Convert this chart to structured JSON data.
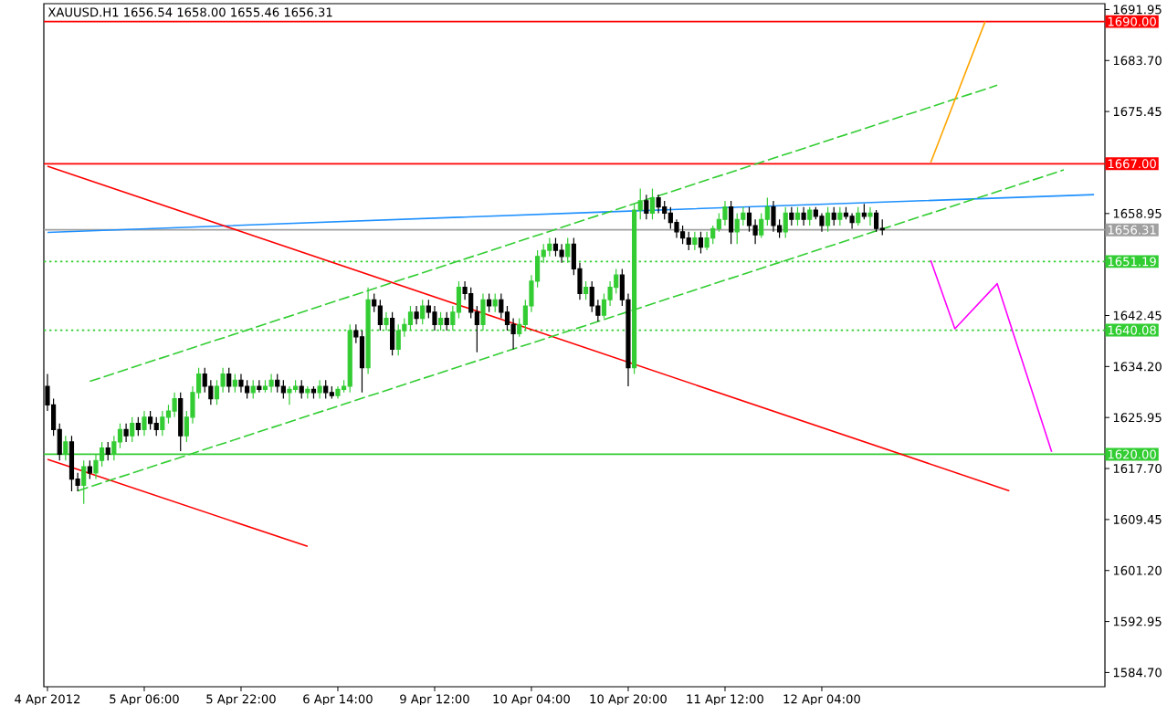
{
  "chart_data": {
    "type": "candlestick",
    "title": "XAUUSD.H1  1656.54 1658.00 1655.46 1656.31",
    "categories": [
      "4 Apr 2012",
      null,
      null,
      null,
      null,
      null,
      null,
      null,
      null,
      null,
      null,
      null,
      null,
      null,
      null,
      null,
      "5 Apr 06:00",
      null,
      null,
      null,
      null,
      null,
      null,
      null,
      null,
      null,
      null,
      null,
      null,
      null,
      null,
      null,
      "5 Apr 22:00",
      null,
      null,
      null,
      null,
      null,
      null,
      null,
      null,
      null,
      null,
      null,
      null,
      null,
      null,
      null,
      "6 Apr 14:00",
      null,
      null,
      null,
      null,
      null,
      null,
      null,
      null,
      null,
      null,
      null,
      null,
      null,
      null,
      null,
      "9 Apr 12:00",
      null,
      null,
      null,
      null,
      null,
      null,
      null,
      null,
      null,
      null,
      null,
      null,
      null,
      null,
      null,
      "10 Apr 04:00",
      null,
      null,
      null,
      null,
      null,
      null,
      null,
      null,
      null,
      null,
      null,
      null,
      null,
      null,
      null,
      "10 Apr 20:00",
      null,
      null,
      null,
      null,
      null,
      null,
      null,
      null,
      null,
      null,
      null,
      null,
      null,
      null,
      null,
      "11 Apr 12:00",
      null,
      null,
      null,
      null,
      null,
      null,
      null,
      null,
      null,
      null,
      null,
      null,
      null,
      null,
      null,
      "12 Apr 04:00",
      null,
      null,
      null,
      null,
      null,
      null,
      null,
      null,
      null,
      null,
      null,
      null,
      null,
      null,
      null,
      null,
      null,
      null,
      null,
      null,
      null,
      null,
      null,
      null,
      null,
      null,
      null,
      null,
      null,
      null,
      null,
      null,
      null,
      null,
      null,
      null,
      null,
      null,
      null,
      null,
      null,
      null,
      null,
      null,
      null,
      null
    ],
    "ohlc": [
      [
        1631,
        1633,
        1627,
        1628
      ],
      [
        1628,
        1629,
        1623,
        1624
      ],
      [
        1624,
        1625,
        1619,
        1620
      ],
      [
        1620,
        1623,
        1619,
        1622
      ],
      [
        1622,
        1623,
        1614,
        1616
      ],
      [
        1616,
        1617,
        1614,
        1615
      ],
      [
        1615,
        1619,
        1612,
        1618
      ],
      [
        1618,
        1619,
        1616,
        1617
      ],
      [
        1617,
        1620,
        1616,
        1619
      ],
      [
        1619,
        1622,
        1618,
        1621
      ],
      [
        1621,
        1622,
        1619,
        1620
      ],
      [
        1620,
        1623,
        1619,
        1622
      ],
      [
        1622,
        1625,
        1621,
        1624
      ],
      [
        1624,
        1625,
        1622,
        1623
      ],
      [
        1623,
        1626,
        1622,
        1625
      ],
      [
        1625,
        1626,
        1623,
        1624
      ],
      [
        1624,
        1627,
        1623,
        1626
      ],
      [
        1626,
        1627,
        1624,
        1625
      ],
      [
        1625,
        1626,
        1623,
        1624
      ],
      [
        1624,
        1627,
        1623,
        1626
      ],
      [
        1626,
        1628,
        1625,
        1627
      ],
      [
        1627,
        1630,
        1626,
        1629
      ],
      [
        1629,
        1630,
        1620.5,
        1623
      ],
      [
        1623,
        1627,
        1622,
        1626
      ],
      [
        1626,
        1631,
        1625,
        1630
      ],
      [
        1630,
        1634,
        1629,
        1633
      ],
      [
        1633,
        1634,
        1630,
        1631
      ],
      [
        1631,
        1632,
        1628,
        1629
      ],
      [
        1629,
        1632,
        1628,
        1631
      ],
      [
        1631,
        1634,
        1630,
        1633
      ],
      [
        1633,
        1634,
        1630,
        1631
      ],
      [
        1631,
        1633,
        1630,
        1632
      ],
      [
        1632,
        1633,
        1630,
        1631
      ],
      [
        1631,
        1632,
        1629,
        1630
      ],
      [
        1630,
        1632,
        1629,
        1631
      ],
      [
        1631,
        1632,
        1630,
        1630.5
      ],
      [
        1630.5,
        1632,
        1630,
        1631
      ],
      [
        1631,
        1633,
        1630,
        1632
      ],
      [
        1632,
        1633,
        1630,
        1631
      ],
      [
        1631,
        1632,
        1629,
        1630
      ],
      [
        1630,
        1631,
        1628,
        1630.5
      ],
      [
        1630.5,
        1632,
        1630,
        1631
      ],
      [
        1631,
        1632,
        1629,
        1630
      ],
      [
        1630,
        1631,
        1629,
        1630.5
      ],
      [
        1630.5,
        1631,
        1629,
        1630
      ],
      [
        1630,
        1632,
        1629,
        1631
      ],
      [
        1631,
        1632,
        1629,
        1630
      ],
      [
        1630,
        1631,
        1629,
        1629.5
      ],
      [
        1629.5,
        1631,
        1629,
        1630.5
      ],
      [
        1630.5,
        1632,
        1630,
        1631
      ],
      [
        1631,
        1641,
        1630,
        1640
      ],
      [
        1640,
        1641,
        1638,
        1639
      ],
      [
        1639,
        1640,
        1630,
        1634
      ],
      [
        1634,
        1647,
        1633,
        1645
      ],
      [
        1645,
        1646,
        1643,
        1644
      ],
      [
        1644,
        1645,
        1640,
        1641
      ],
      [
        1641,
        1643,
        1640,
        1642
      ],
      [
        1642,
        1643,
        1636,
        1637
      ],
      [
        1637,
        1641,
        1636,
        1640
      ],
      [
        1640,
        1642,
        1639,
        1641
      ],
      [
        1641,
        1644,
        1640,
        1643
      ],
      [
        1643,
        1644,
        1641,
        1642
      ],
      [
        1642,
        1645,
        1641,
        1644
      ],
      [
        1644,
        1645,
        1642,
        1643
      ],
      [
        1643,
        1644,
        1640,
        1641
      ],
      [
        1641,
        1643,
        1640,
        1642
      ],
      [
        1642,
        1643,
        1640,
        1641
      ],
      [
        1641,
        1644,
        1640,
        1643
      ],
      [
        1643,
        1648,
        1642,
        1647
      ],
      [
        1647,
        1648,
        1645,
        1646
      ],
      [
        1646,
        1647,
        1642,
        1643
      ],
      [
        1643,
        1644,
        1636.5,
        1641
      ],
      [
        1641,
        1646,
        1640,
        1645
      ],
      [
        1645,
        1646,
        1643,
        1644
      ],
      [
        1644,
        1646,
        1643,
        1645
      ],
      [
        1645,
        1646,
        1642,
        1643
      ],
      [
        1643,
        1644,
        1640,
        1641
      ],
      [
        1641,
        1642,
        1637,
        1639.5
      ],
      [
        1639.5,
        1642,
        1639,
        1641
      ],
      [
        1641,
        1645,
        1640,
        1644
      ],
      [
        1644,
        1649,
        1643,
        1648
      ],
      [
        1648,
        1653,
        1647,
        1652
      ],
      [
        1652,
        1654,
        1651,
        1653
      ],
      [
        1653,
        1655,
        1652,
        1654
      ],
      [
        1654,
        1655,
        1652,
        1653
      ],
      [
        1653,
        1654,
        1651,
        1652
      ],
      [
        1652,
        1655,
        1651,
        1654
      ],
      [
        1654,
        1655,
        1649,
        1650
      ],
      [
        1650,
        1651,
        1645,
        1646
      ],
      [
        1646,
        1648,
        1645,
        1647
      ],
      [
        1647,
        1648,
        1643,
        1644
      ],
      [
        1644,
        1645,
        1641.5,
        1642.5
      ],
      [
        1642.5,
        1646,
        1642,
        1645
      ],
      [
        1645,
        1648,
        1644,
        1647
      ],
      [
        1647,
        1650,
        1646,
        1649
      ],
      [
        1649,
        1650,
        1644,
        1645
      ],
      [
        1645,
        1646,
        1631,
        1634
      ],
      [
        1634,
        1660.5,
        1633,
        1659.5
      ],
      [
        1659.5,
        1663,
        1658,
        1661
      ],
      [
        1661,
        1662,
        1658,
        1659
      ],
      [
        1659,
        1663,
        1658,
        1661.5
      ],
      [
        1661.5,
        1662,
        1659,
        1660
      ],
      [
        1660,
        1661,
        1658,
        1659
      ],
      [
        1659,
        1660,
        1656.5,
        1657.5
      ],
      [
        1657.5,
        1658,
        1655,
        1656
      ],
      [
        1656,
        1657,
        1654,
        1655
      ],
      [
        1655,
        1656,
        1653,
        1654
      ],
      [
        1654,
        1656,
        1653,
        1655
      ],
      [
        1655,
        1656,
        1652.5,
        1653.5
      ],
      [
        1653.5,
        1656,
        1653,
        1655
      ],
      [
        1655,
        1657,
        1654,
        1656.5
      ],
      [
        1656.5,
        1659,
        1656,
        1658
      ],
      [
        1658,
        1661,
        1657,
        1660
      ],
      [
        1660,
        1661,
        1654,
        1656
      ],
      [
        1656,
        1659,
        1654,
        1658
      ],
      [
        1658,
        1660,
        1657,
        1659
      ],
      [
        1659,
        1660,
        1656,
        1657
      ],
      [
        1657,
        1658,
        1654,
        1655.5
      ],
      [
        1655.5,
        1659,
        1655,
        1658
      ],
      [
        1658,
        1661.5,
        1657,
        1660
      ],
      [
        1660,
        1661,
        1656,
        1657
      ],
      [
        1657,
        1658,
        1655,
        1656
      ],
      [
        1656,
        1660,
        1655,
        1659
      ],
      [
        1659,
        1660,
        1657,
        1658
      ],
      [
        1658,
        1660,
        1657,
        1659
      ],
      [
        1659,
        1660,
        1657,
        1658
      ],
      [
        1658,
        1660,
        1657,
        1659.5
      ],
      [
        1659.5,
        1660,
        1658,
        1658.5
      ],
      [
        1658.5,
        1659,
        1656,
        1657
      ],
      [
        1657,
        1660,
        1656,
        1659
      ],
      [
        1659,
        1660,
        1657,
        1658
      ],
      [
        1658,
        1660,
        1657,
        1659
      ],
      [
        1659,
        1660,
        1658,
        1658.5
      ],
      [
        1658.5,
        1659,
        1656.5,
        1657.5
      ],
      [
        1657.5,
        1660,
        1657,
        1659
      ],
      [
        1659,
        1660.5,
        1658,
        1658.5
      ],
      [
        1658.5,
        1660,
        1657,
        1659
      ],
      [
        1659,
        1659.5,
        1656,
        1656.54
      ],
      [
        1656.54,
        1658,
        1655.46,
        1656.31
      ],
      null,
      null,
      null,
      null,
      null,
      null,
      null,
      null,
      null,
      null,
      null,
      null,
      null,
      null,
      null,
      null,
      null,
      null,
      null,
      null,
      null,
      null,
      null,
      null,
      null,
      null,
      null,
      null,
      null,
      null,
      null,
      null,
      null,
      null,
      null,
      null
    ],
    "series": [
      {
        "type": "line",
        "color": "#1e90ff",
        "values": [
          1655.9,
          null,
          null,
          null,
          null,
          null,
          null,
          null,
          null,
          null,
          null,
          null,
          null,
          null,
          null,
          null,
          null,
          null,
          null,
          null,
          null,
          null,
          null,
          null,
          null,
          null,
          null,
          null,
          null,
          null,
          null,
          null,
          null,
          null,
          null,
          null,
          null,
          null,
          null,
          null,
          null,
          null,
          null,
          null,
          null,
          null,
          null,
          null,
          null,
          null,
          null,
          null,
          null,
          null,
          null,
          null,
          null,
          null,
          null,
          null,
          null,
          null,
          null,
          null,
          null,
          null,
          null,
          null,
          null,
          null,
          null,
          null,
          null,
          null,
          null,
          null,
          null,
          null,
          null,
          null,
          null,
          null,
          null,
          null,
          null,
          null,
          null,
          null,
          null,
          null,
          null,
          null,
          1659.2,
          null,
          null,
          null,
          null,
          null,
          null,
          null,
          null,
          null,
          null,
          null,
          null,
          null,
          null,
          null,
          null,
          null,
          null,
          null,
          null,
          null,
          null,
          null,
          null,
          null,
          null,
          null,
          null,
          null,
          null,
          null,
          null,
          null,
          null,
          null,
          null,
          null,
          null,
          null,
          null,
          null,
          null,
          null,
          null,
          null,
          null,
          null,
          null,
          null,
          null,
          null,
          null,
          null,
          null,
          null,
          null,
          null,
          null,
          null,
          null,
          null,
          null,
          null,
          null,
          null,
          null,
          null,
          null,
          null,
          null,
          null,
          null,
          null,
          null,
          null,
          null,
          null,
          null,
          null,
          null,
          1662.0,
          null
        ]
      },
      {
        "type": "line",
        "color": "#ff0000",
        "values": [
          1666.6,
          null,
          null,
          null,
          null,
          null,
          null,
          null,
          null,
          null,
          null,
          null,
          null,
          null,
          null,
          null,
          null,
          null,
          null,
          null,
          null,
          null,
          null,
          null,
          null,
          null,
          null,
          null,
          null,
          null,
          null,
          null,
          null,
          null,
          null,
          null,
          null,
          null,
          null,
          null,
          null,
          null,
          null,
          null,
          null,
          null,
          null,
          null,
          null,
          null,
          null,
          null,
          null,
          null,
          null,
          null,
          null,
          null,
          null,
          null,
          null,
          null,
          null,
          null,
          null,
          null,
          null,
          null,
          null,
          null,
          null,
          null,
          null,
          null,
          null,
          null,
          null,
          null,
          null,
          null,
          null,
          null,
          null,
          null,
          null,
          null,
          null,
          null,
          null,
          null,
          null,
          null,
          null,
          null,
          null,
          null,
          null,
          null,
          null,
          null,
          null,
          null,
          null,
          null,
          null,
          null,
          null,
          null,
          null,
          null,
          null,
          null,
          null,
          null,
          null,
          null,
          null,
          null,
          null,
          null,
          null,
          null,
          null,
          null,
          null,
          null,
          null,
          null,
          null,
          null,
          null,
          null,
          null,
          null,
          null,
          null,
          null,
          null,
          null,
          null,
          null,
          null,
          null,
          null,
          null,
          null,
          null,
          null,
          null,
          null,
          null,
          null,
          null,
          null,
          null,
          null,
          null,
          null,
          null,
          1614.1,
          null,
          null,
          null,
          null,
          null,
          null,
          null,
          null,
          null,
          null,
          null,
          null,
          null,
          null,
          null
        ]
      },
      {
        "type": "line",
        "color": "#ff0000",
        "values": [
          1619.2,
          null,
          null,
          null,
          null,
          null,
          null,
          null,
          null,
          null,
          null,
          null,
          null,
          null,
          null,
          null,
          null,
          null,
          null,
          null,
          null,
          null,
          null,
          null,
          null,
          null,
          null,
          null,
          null,
          null,
          null,
          null,
          null,
          null,
          null,
          null,
          null,
          null,
          null,
          null,
          null,
          null,
          null,
          1605.1,
          null,
          null,
          null,
          null,
          null,
          null,
          null,
          null,
          null,
          null,
          null,
          null,
          null,
          null,
          null,
          null,
          null,
          null,
          null,
          null,
          null,
          null,
          null,
          null,
          null,
          null,
          null,
          null,
          null,
          null,
          null,
          null,
          null,
          null,
          null,
          null,
          null,
          null,
          null,
          null,
          null,
          null,
          null,
          null,
          null,
          null,
          null,
          null,
          null,
          null,
          null,
          null,
          null,
          null,
          null,
          null,
          null,
          null,
          null,
          null,
          null,
          null,
          null,
          null,
          null,
          null,
          null,
          null,
          null,
          null,
          null,
          null,
          null,
          null,
          null,
          null,
          null,
          null,
          null,
          null,
          null,
          null,
          null,
          null,
          null,
          null,
          null,
          null,
          null,
          null,
          null,
          null,
          null,
          null,
          null,
          null,
          null,
          null,
          null,
          null,
          null,
          null,
          null,
          null,
          null,
          null,
          null,
          null,
          null,
          null,
          null,
          null,
          null,
          null,
          null,
          null,
          null,
          null,
          null,
          null,
          null,
          null,
          null,
          null,
          null,
          null,
          null,
          null,
          null,
          null,
          null
        ]
      },
      {
        "type": "line",
        "color": "#32cd32",
        "line_style": "dashed",
        "values": [
          null,
          null,
          null,
          null,
          null,
          null,
          null,
          1631.8,
          null,
          null,
          null,
          null,
          null,
          null,
          null,
          null,
          null,
          null,
          null,
          null,
          null,
          null,
          null,
          null,
          null,
          null,
          null,
          null,
          null,
          null,
          null,
          null,
          null,
          null,
          null,
          null,
          null,
          null,
          null,
          null,
          null,
          null,
          null,
          null,
          null,
          null,
          null,
          null,
          null,
          null,
          null,
          null,
          null,
          null,
          null,
          null,
          null,
          null,
          null,
          null,
          null,
          null,
          null,
          null,
          null,
          null,
          null,
          null,
          null,
          null,
          null,
          null,
          null,
          null,
          null,
          null,
          null,
          null,
          null,
          null,
          null,
          null,
          null,
          null,
          null,
          null,
          null,
          null,
          null,
          null,
          null,
          null,
          null,
          null,
          null,
          null,
          null,
          null,
          null,
          null,
          null,
          null,
          null,
          null,
          null,
          null,
          null,
          null,
          null,
          null,
          null,
          null,
          null,
          null,
          null,
          null,
          null,
          null,
          null,
          null,
          null,
          null,
          null,
          null,
          null,
          null,
          null,
          null,
          null,
          null,
          null,
          null,
          null,
          null,
          null,
          null,
          null,
          null,
          null,
          null,
          null,
          null,
          null,
          null,
          null,
          null,
          null,
          null,
          null,
          null,
          null,
          null,
          null,
          null,
          null,
          null,
          null,
          1679.7,
          null,
          null,
          null,
          null,
          null,
          null,
          null,
          null,
          null,
          null,
          null,
          null,
          null,
          null,
          null,
          null,
          null
        ]
      },
      {
        "type": "line",
        "color": "#32cd32",
        "line_style": "dashed",
        "values": [
          null,
          null,
          null,
          null,
          null,
          1614.1,
          null,
          null,
          null,
          null,
          null,
          null,
          null,
          null,
          null,
          null,
          null,
          null,
          null,
          null,
          null,
          null,
          null,
          null,
          null,
          null,
          null,
          null,
          null,
          null,
          null,
          null,
          null,
          null,
          null,
          null,
          null,
          null,
          null,
          null,
          null,
          null,
          null,
          null,
          null,
          null,
          null,
          null,
          null,
          null,
          null,
          null,
          null,
          null,
          null,
          null,
          null,
          null,
          null,
          null,
          null,
          null,
          null,
          null,
          null,
          null,
          null,
          null,
          null,
          null,
          null,
          null,
          null,
          null,
          null,
          null,
          null,
          null,
          null,
          null,
          null,
          null,
          null,
          null,
          null,
          null,
          null,
          null,
          null,
          null,
          null,
          null,
          null,
          null,
          null,
          null,
          null,
          null,
          null,
          null,
          null,
          null,
          null,
          null,
          null,
          null,
          null,
          null,
          null,
          null,
          null,
          null,
          null,
          null,
          null,
          null,
          null,
          null,
          null,
          null,
          null,
          null,
          null,
          null,
          null,
          null,
          null,
          null,
          null,
          null,
          null,
          null,
          null,
          null,
          null,
          null,
          null,
          null,
          null,
          null,
          null,
          null,
          null,
          null,
          null,
          null,
          null,
          null,
          null,
          null,
          null,
          null,
          null,
          null,
          null,
          null,
          null,
          null,
          null,
          null,
          null,
          null,
          null,
          null,
          null,
          null,
          null,
          null,
          1666,
          null,
          null,
          null,
          null,
          null,
          null
        ]
      },
      {
        "type": "line",
        "color": "#ffa500",
        "values": [
          null,
          null,
          null,
          null,
          null,
          null,
          null,
          null,
          null,
          null,
          null,
          null,
          null,
          null,
          null,
          null,
          null,
          null,
          null,
          null,
          null,
          null,
          null,
          null,
          null,
          null,
          null,
          null,
          null,
          null,
          null,
          null,
          null,
          null,
          null,
          null,
          null,
          null,
          null,
          null,
          null,
          null,
          null,
          null,
          null,
          null,
          null,
          null,
          null,
          null,
          null,
          null,
          null,
          null,
          null,
          null,
          null,
          null,
          null,
          null,
          null,
          null,
          null,
          null,
          null,
          null,
          null,
          null,
          null,
          null,
          null,
          null,
          null,
          null,
          null,
          null,
          null,
          null,
          null,
          null,
          null,
          null,
          null,
          null,
          null,
          null,
          null,
          null,
          null,
          null,
          null,
          null,
          null,
          null,
          null,
          null,
          null,
          null,
          null,
          null,
          null,
          null,
          null,
          null,
          null,
          null,
          null,
          null,
          null,
          null,
          null,
          null,
          null,
          null,
          null,
          null,
          null,
          null,
          null,
          null,
          null,
          null,
          null,
          null,
          null,
          null,
          null,
          null,
          null,
          null,
          null,
          null,
          null,
          null,
          null,
          null,
          null,
          null,
          null,
          null,
          null,
          null,
          null,
          null,
          null,
          null,
          1667.2,
          null,
          null,
          null,
          null,
          null,
          null,
          null,
          null,
          1690,
          null,
          null,
          null,
          null,
          null,
          null,
          null,
          null,
          null,
          null,
          null,
          null,
          null,
          null,
          null,
          null,
          null,
          null,
          null
        ]
      },
      {
        "type": "line",
        "color": "#ff00ff",
        "values": [
          null,
          null,
          null,
          null,
          null,
          null,
          null,
          null,
          null,
          null,
          null,
          null,
          null,
          null,
          null,
          null,
          null,
          null,
          null,
          null,
          null,
          null,
          null,
          null,
          null,
          null,
          null,
          null,
          null,
          null,
          null,
          null,
          null,
          null,
          null,
          null,
          null,
          null,
          null,
          null,
          null,
          null,
          null,
          null,
          null,
          null,
          null,
          null,
          null,
          null,
          null,
          null,
          null,
          null,
          null,
          null,
          null,
          null,
          null,
          null,
          null,
          null,
          null,
          null,
          null,
          null,
          null,
          null,
          null,
          null,
          null,
          null,
          null,
          null,
          null,
          null,
          null,
          null,
          null,
          null,
          null,
          null,
          null,
          null,
          null,
          null,
          null,
          null,
          null,
          null,
          null,
          null,
          null,
          null,
          null,
          null,
          null,
          null,
          null,
          null,
          null,
          null,
          null,
          null,
          null,
          null,
          null,
          null,
          null,
          null,
          null,
          null,
          null,
          null,
          null,
          null,
          null,
          null,
          null,
          null,
          null,
          null,
          null,
          null,
          null,
          null,
          null,
          null,
          null,
          null,
          null,
          null,
          null,
          null,
          null,
          null,
          null,
          null,
          null,
          null,
          null,
          null,
          null,
          null,
          null,
          null,
          1651.4,
          null,
          null,
          null,
          1640.3,
          null,
          null,
          null,
          null,
          null,
          null,
          1647.6,
          null,
          null,
          null,
          null,
          null,
          null,
          null,
          null,
          1620.4,
          null,
          null,
          null,
          null,
          null,
          null,
          null,
          null
        ]
      }
    ],
    "ref_lines": [
      {
        "axis": "y",
        "value": 1690,
        "label": "1690.00",
        "color": "#ff0000"
      },
      {
        "axis": "y",
        "value": 1667,
        "label": "1667.00",
        "color": "#ff0000"
      },
      {
        "axis": "y",
        "value": 1656.31,
        "label": "1656.31",
        "color": "#a0a0a0"
      },
      {
        "axis": "y",
        "value": 1651.19,
        "label": "1651.19",
        "color": "#32cd32",
        "line_style": "dotted"
      },
      {
        "axis": "y",
        "value": 1640.08,
        "label": "1640.08",
        "color": "#32cd32",
        "line_style": "dotted"
      },
      {
        "axis": "y",
        "value": 1620,
        "label": "1620.00",
        "color": "#32cd32"
      }
    ],
    "ylim": [
      1582.4,
      1692.9
    ],
    "yticks": [
      {
        "value": 1584.7,
        "label": "1584.70"
      },
      {
        "value": 1592.95,
        "label": "1592.95"
      },
      {
        "value": 1601.2,
        "label": "1601.20"
      },
      {
        "value": 1609.45,
        "label": "1609.45"
      },
      {
        "value": 1617.7,
        "label": "1617.70"
      },
      {
        "value": 1625.95,
        "label": "1625.95"
      },
      {
        "value": 1634.2,
        "label": "1634.20"
      },
      {
        "value": 1642.45,
        "label": "1642.45"
      },
      {
        "value": 1658.95,
        "label": "1658.95"
      },
      {
        "value": 1675.45,
        "label": "1675.45"
      },
      {
        "value": 1683.7,
        "label": "1683.70"
      },
      {
        "value": 1691.95,
        "label": "1691.95"
      }
    ]
  }
}
